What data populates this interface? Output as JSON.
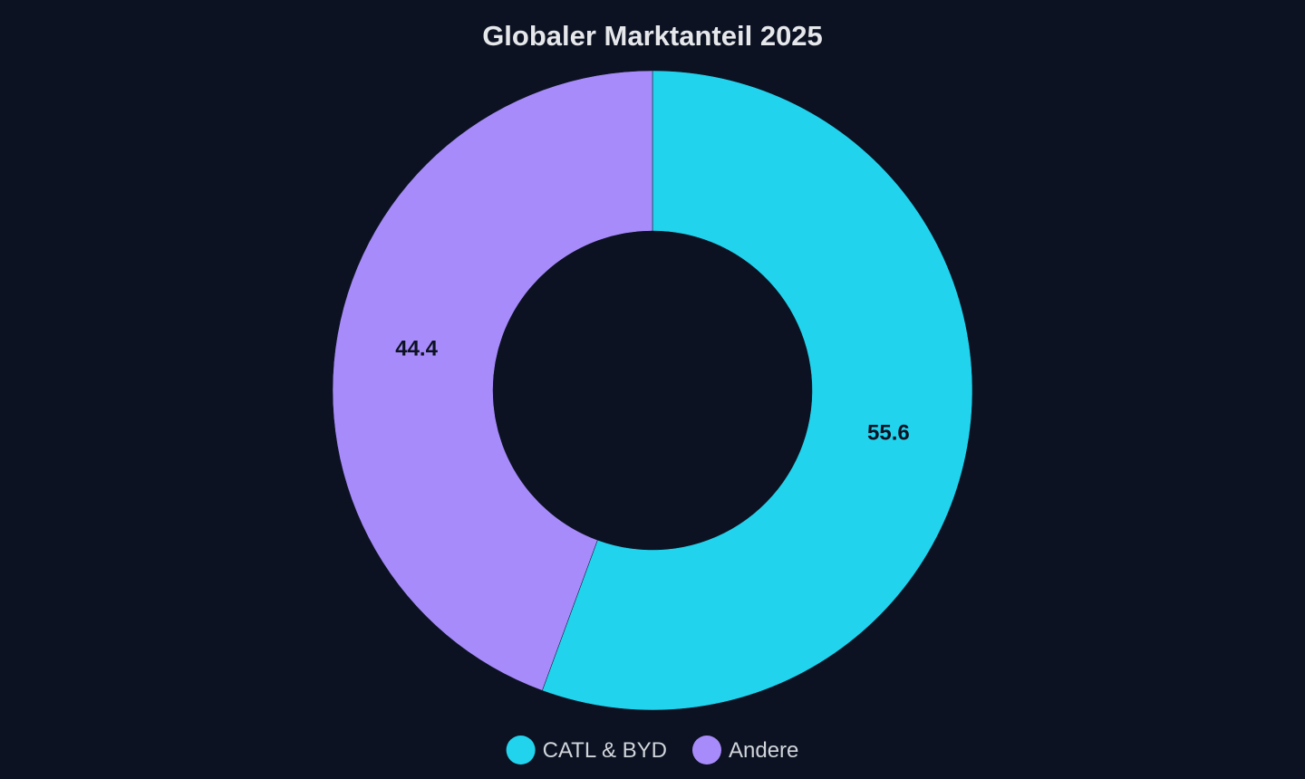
{
  "chart_data": {
    "type": "pie",
    "variant": "donut",
    "title": "Globaler Marktanteil 2025",
    "slices": [
      {
        "label": "CATL & BYD",
        "value": 55.6,
        "color": "#22d3ee"
      },
      {
        "label": "Andere",
        "value": 44.4,
        "color": "#a78bfa"
      }
    ],
    "legend_position": "bottom-center",
    "start_angle": "12 o'clock, clockwise"
  },
  "theme": {
    "background": "#0c1222",
    "title_color": "#e5e7eb",
    "label_color": "#0c1222",
    "legend_text_color": "#d1d5db"
  }
}
